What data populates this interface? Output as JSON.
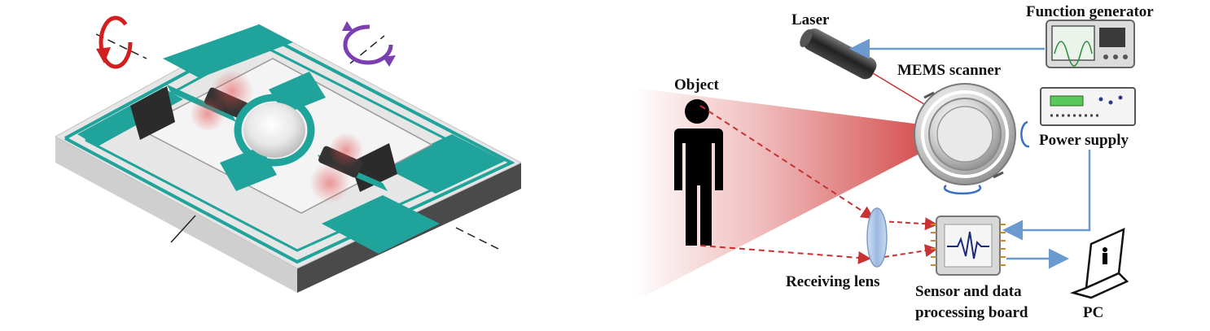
{
  "labels": {
    "function_generator": "Function generator",
    "laser": "Laser",
    "mems_scanner": "MEMS scanner",
    "object": "Object",
    "power_supply": "Power supply",
    "receiving_lens": "Receiving lens",
    "sensor_line1": "Sensor and data",
    "sensor_line2": "processing board",
    "pc": "PC"
  },
  "colors": {
    "chip_teal": "#1fa39a",
    "chip_dark": "#0f6f68",
    "substrate": "#e4e4e4",
    "substrate_side": "#8a8a8a",
    "rotation_red": "#d11f1f",
    "rotation_purple": "#7a3fb0",
    "beam_red": "#d43a3a",
    "wire_blue": "#6a9ad0",
    "rotation_blue": "#3a6fc4"
  }
}
